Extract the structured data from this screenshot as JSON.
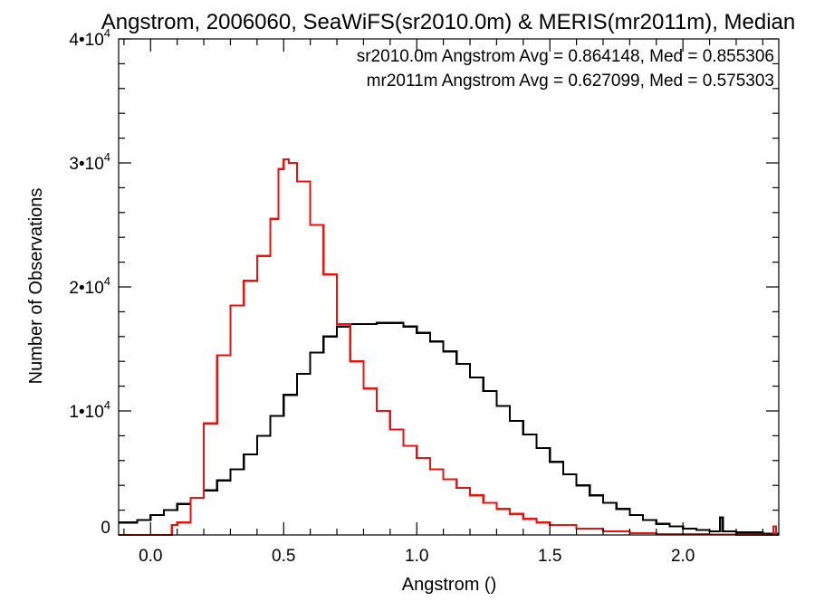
{
  "chart_data": {
    "type": "line",
    "title": "Angstrom, 2006060, SeaWiFS(sr2010.0m) & MERIS(mr2011m), Median",
    "xlabel": "Angstrom ()",
    "ylabel": "Number of Observations",
    "xlim": [
      -0.12,
      2.36
    ],
    "ylim": [
      0,
      40000
    ],
    "x_ticks": [
      0.0,
      0.5,
      1.0,
      1.5,
      2.0
    ],
    "x_tick_labels": [
      "0.0",
      "0.5",
      "1.0",
      "1.5",
      "2.0"
    ],
    "y_ticks": [
      0,
      10000,
      20000,
      30000,
      40000
    ],
    "y_tick_labels": [
      {
        "mant": "0",
        "exp": ""
      },
      {
        "mant": "1•10",
        "exp": "4"
      },
      {
        "mant": "2•10",
        "exp": "4"
      },
      {
        "mant": "3•10",
        "exp": "4"
      },
      {
        "mant": "4•10",
        "exp": "4"
      }
    ],
    "grid": false,
    "annotations": [
      {
        "text": "sr2010.0m Angstrom Avg = 0.864148, Med = 0.855306",
        "color": "#000000"
      },
      {
        "text": "mr2011m Angstrom Avg = 0.627099, Med = 0.575303",
        "color": "#e8130f"
      }
    ],
    "series": [
      {
        "color": "#000000",
        "x": [
          -0.12,
          -0.1,
          -0.05,
          0.0,
          0.05,
          0.1,
          0.15,
          0.2,
          0.25,
          0.3,
          0.35,
          0.4,
          0.45,
          0.5,
          0.55,
          0.6,
          0.65,
          0.7,
          0.75,
          0.8,
          0.85,
          0.9,
          0.95,
          1.0,
          1.05,
          1.1,
          1.15,
          1.2,
          1.25,
          1.3,
          1.35,
          1.4,
          1.45,
          1.5,
          1.55,
          1.6,
          1.65,
          1.7,
          1.75,
          1.8,
          1.85,
          1.9,
          1.95,
          2.0,
          2.05,
          2.1,
          2.13,
          2.14,
          2.15,
          2.2,
          2.3,
          2.36
        ],
        "y": [
          1000,
          1000,
          1200,
          1600,
          2000,
          2500,
          3000,
          3600,
          4400,
          5300,
          6500,
          8000,
          9600,
          11300,
          13000,
          14700,
          16000,
          16800,
          17000,
          17000,
          17100,
          17100,
          16800,
          16300,
          15600,
          14800,
          13800,
          12700,
          11600,
          10400,
          9200,
          8100,
          7000,
          5900,
          4900,
          4000,
          3200,
          2600,
          2100,
          1600,
          1200,
          900,
          700,
          500,
          400,
          300,
          300,
          1400,
          300,
          200,
          100,
          100
        ]
      },
      {
        "color": "#e8130f",
        "x": [
          -0.12,
          0.05,
          0.07,
          0.08,
          0.1,
          0.15,
          0.2,
          0.25,
          0.3,
          0.35,
          0.4,
          0.45,
          0.48,
          0.5,
          0.52,
          0.55,
          0.6,
          0.65,
          0.7,
          0.75,
          0.8,
          0.85,
          0.9,
          0.95,
          1.0,
          1.05,
          1.1,
          1.15,
          1.2,
          1.25,
          1.3,
          1.35,
          1.4,
          1.45,
          1.5,
          1.6,
          1.7,
          1.8,
          1.9,
          2.0,
          2.1,
          2.2,
          2.3,
          2.33,
          2.34,
          2.35,
          2.36
        ],
        "y": [
          0,
          0,
          0,
          800,
          1000,
          3000,
          9000,
          14500,
          18500,
          20500,
          22500,
          25500,
          29500,
          30300,
          30000,
          28500,
          25000,
          21000,
          17000,
          14000,
          11800,
          10000,
          8500,
          7200,
          6200,
          5300,
          4500,
          3800,
          3200,
          2600,
          2100,
          1700,
          1300,
          1000,
          800,
          500,
          300,
          150,
          80,
          50,
          30,
          20,
          10,
          10,
          700,
          10,
          10
        ]
      }
    ]
  }
}
